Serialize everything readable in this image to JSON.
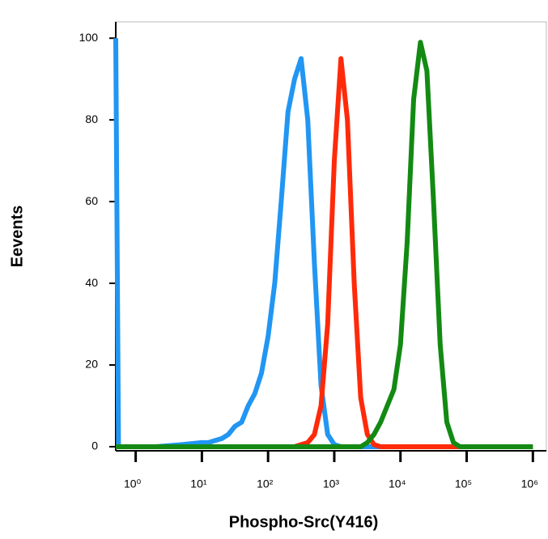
{
  "chart_data": {
    "type": "line",
    "xscale": "log",
    "x_label": "Phospho-Src(Y416)",
    "y_label": "Eevents",
    "x": [
      0.5,
      0.55,
      2,
      5,
      10,
      12.6,
      15.8,
      20,
      25.1,
      31.6,
      39.8,
      50.1,
      63.1,
      79.4,
      100,
      126,
      158,
      200,
      251,
      316,
      398,
      501,
      631,
      794,
      1000,
      1260,
      1580,
      2000,
      2510,
      3160,
      3980,
      5010,
      6310,
      7940,
      10000,
      12600,
      15800,
      20000,
      25100,
      31600,
      39800,
      50100,
      63100,
      79400,
      100000,
      1000000
    ],
    "series": [
      {
        "color": "#2196f3",
        "values": [
          100,
          0,
          0,
          0.5,
          1,
          1,
          1.5,
          2,
          3,
          5,
          6,
          10,
          13,
          18,
          27,
          40,
          60,
          82,
          90,
          95,
          80,
          45,
          15,
          3,
          0.5,
          0,
          0,
          0,
          0,
          0,
          0,
          0,
          0,
          0,
          0,
          0,
          0,
          0,
          0,
          0,
          0,
          0,
          0,
          0,
          0,
          0
        ]
      },
      {
        "color": "#ff2a0a",
        "values": [
          0,
          0,
          0,
          0,
          0,
          0,
          0,
          0,
          0,
          0,
          0,
          0,
          0,
          0,
          0,
          0,
          0,
          0,
          0,
          0.5,
          1,
          3,
          10,
          30,
          70,
          95,
          80,
          40,
          12,
          3,
          0.5,
          0,
          0,
          0,
          0,
          0,
          0,
          0,
          0,
          0,
          0,
          0,
          0,
          0,
          0,
          0
        ]
      },
      {
        "color": "#138a13",
        "values": [
          0,
          0,
          0,
          0,
          0,
          0,
          0,
          0,
          0,
          0,
          0,
          0,
          0,
          0,
          0,
          0,
          0,
          0,
          0,
          0,
          0,
          0,
          0,
          0,
          0,
          0,
          0,
          0,
          0,
          1,
          3,
          6,
          10,
          14,
          25,
          50,
          85,
          99,
          92,
          60,
          25,
          6,
          1,
          0,
          0,
          0
        ]
      }
    ],
    "xlim": [
      0.5,
      1600000
    ],
    "ylim": [
      -1,
      104
    ],
    "xticks": [
      {
        "value": 1,
        "label": "10⁰"
      },
      {
        "value": 10,
        "label": "10¹"
      },
      {
        "value": 100,
        "label": "10²"
      },
      {
        "value": 1000,
        "label": "10³"
      },
      {
        "value": 10000,
        "label": "10⁴"
      },
      {
        "value": 100000,
        "label": "10⁵"
      },
      {
        "value": 1000000,
        "label": "10⁶"
      }
    ],
    "yticks": [
      0,
      20,
      40,
      60,
      80,
      100
    ],
    "grid": false
  }
}
